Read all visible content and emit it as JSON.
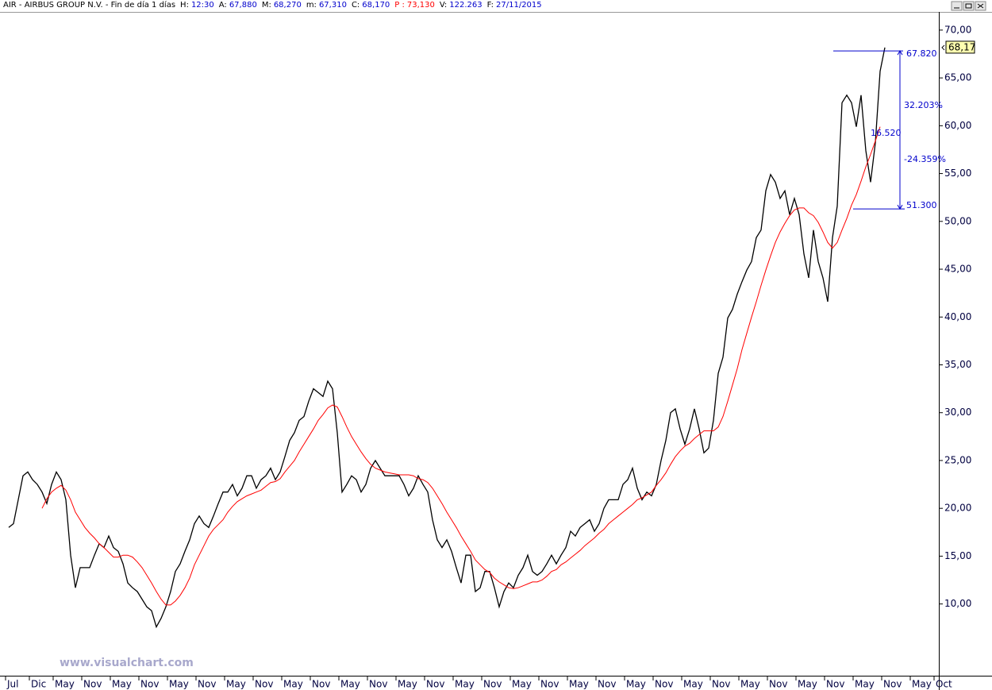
{
  "header": {
    "title": "AIR - AIRBUS GROUP N.V. - Fin de día 1 días",
    "fields": [
      {
        "label": "H:",
        "value": "12:30"
      },
      {
        "label": "A:",
        "value": "67,880"
      },
      {
        "label": "M:",
        "value": "68,270"
      },
      {
        "label": "m:",
        "value": "67,310"
      },
      {
        "label": "C:",
        "value": "68,170"
      },
      {
        "label": "P :",
        "value": "73,130",
        "color": "#ff0000"
      },
      {
        "label": "V:",
        "value": "122.263"
      },
      {
        "label": "F:",
        "value": "27/11/2015"
      }
    ]
  },
  "watermark": "www.visualchart.com",
  "chart_data": {
    "type": "line",
    "categories": [
      "Jul",
      null,
      null,
      null,
      null,
      "Dic",
      null,
      null,
      null,
      null,
      "May",
      null,
      null,
      null,
      null,
      null,
      "Nov",
      null,
      null,
      null,
      null,
      null,
      "May",
      null,
      null,
      null,
      null,
      null,
      "Nov",
      null,
      null,
      null,
      null,
      null,
      "May",
      null,
      null,
      null,
      null,
      null,
      "Nov",
      null,
      null,
      null,
      null,
      null,
      "May",
      null,
      null,
      null,
      null,
      null,
      "Nov",
      null,
      null,
      null,
      null,
      null,
      "May",
      null,
      null,
      null,
      null,
      null,
      "Nov",
      null,
      null,
      null,
      null,
      null,
      "May",
      null,
      null,
      null,
      null,
      null,
      "Nov",
      null,
      null,
      null,
      null,
      null,
      "May",
      null,
      null,
      null,
      null,
      null,
      "Nov",
      null,
      null,
      null,
      null,
      null,
      "May",
      null,
      null,
      null,
      null,
      null,
      "Nov",
      null,
      null,
      null,
      null,
      null,
      "May",
      null,
      null,
      null,
      null,
      null,
      "Nov",
      null,
      null,
      null,
      null,
      null,
      "May",
      null,
      null,
      null,
      null,
      null,
      "Nov",
      null,
      null,
      null,
      null,
      null,
      "May",
      null,
      null,
      null,
      null,
      null,
      "Nov",
      null,
      null,
      null,
      null,
      null,
      "May",
      null,
      null,
      null,
      null,
      null,
      "Nov",
      null,
      null,
      null,
      null,
      null,
      "May",
      null,
      null,
      null,
      null,
      null,
      "Nov",
      null,
      null,
      null,
      null,
      null,
      "May",
      null,
      null,
      null,
      null,
      null,
      "Nov",
      null,
      null,
      null,
      null,
      null,
      "May",
      null,
      null,
      null,
      null,
      null,
      "Nov",
      null,
      null,
      null,
      null,
      null,
      "May",
      null,
      null,
      null,
      null,
      "Oct"
    ],
    "series": [
      {
        "color": "#000000",
        "values": [
          18.0,
          18.4,
          20.9,
          23.4,
          23.8,
          23.0,
          22.5,
          21.7,
          20.5,
          22.5,
          23.8,
          23.0,
          20.9,
          15.1,
          11.7,
          13.8,
          13.8,
          13.8,
          15.1,
          16.3,
          15.9,
          17.1,
          15.9,
          15.5,
          14.2,
          12.2,
          11.7,
          11.3,
          10.5,
          9.7,
          9.3,
          7.6,
          8.5,
          9.7,
          11.3,
          13.4,
          14.2,
          15.5,
          16.7,
          18.4,
          19.2,
          18.4,
          18.0,
          19.2,
          20.5,
          21.7,
          21.7,
          22.5,
          21.3,
          22.1,
          23.4,
          23.4,
          22.1,
          23.0,
          23.4,
          24.2,
          23.0,
          23.8,
          25.4,
          27.1,
          27.9,
          29.2,
          29.6,
          31.2,
          32.5,
          32.1,
          31.7,
          33.3,
          32.5,
          27.9,
          21.7,
          22.5,
          23.4,
          23.0,
          21.7,
          22.5,
          24.2,
          25.0,
          24.2,
          23.4,
          23.4,
          23.4,
          23.4,
          22.5,
          21.3,
          22.1,
          23.4,
          22.5,
          21.7,
          18.8,
          16.7,
          15.9,
          16.7,
          15.5,
          13.8,
          12.2,
          15.1,
          15.1,
          11.3,
          11.7,
          13.4,
          13.4,
          11.7,
          9.7,
          11.3,
          12.2,
          11.7,
          13.0,
          13.8,
          15.1,
          13.4,
          13.0,
          13.4,
          14.2,
          15.1,
          14.2,
          15.1,
          15.9,
          17.6,
          17.1,
          18.0,
          18.4,
          18.8,
          17.6,
          18.4,
          20.0,
          20.9,
          20.9,
          20.9,
          22.5,
          23.0,
          24.2,
          22.1,
          20.9,
          21.7,
          21.3,
          22.5,
          25.0,
          27.1,
          30.0,
          30.4,
          28.3,
          26.7,
          28.3,
          30.4,
          28.3,
          25.8,
          26.3,
          29.2,
          34.1,
          35.8,
          39.9,
          40.8,
          42.4,
          43.7,
          44.9,
          45.8,
          48.3,
          49.1,
          53.2,
          54.9,
          54.1,
          52.4,
          53.2,
          50.7,
          52.4,
          50.7,
          46.6,
          44.1,
          49.1,
          45.8,
          44.1,
          41.6,
          48.3,
          51.6,
          62.4,
          63.2,
          62.4,
          59.9,
          63.2,
          57.4,
          54.1,
          58.2,
          65.7,
          68.17,
          null,
          null,
          null,
          null,
          null,
          null,
          null,
          null,
          null,
          null,
          null
        ]
      },
      {
        "color": "#ff0000",
        "values": [
          null,
          null,
          null,
          null,
          null,
          null,
          null,
          20.0,
          21.0,
          21.7,
          22.1,
          22.4,
          21.9,
          20.9,
          19.6,
          18.8,
          18.0,
          17.4,
          16.9,
          16.3,
          15.9,
          15.4,
          14.9,
          14.9,
          15.1,
          15.1,
          14.9,
          14.4,
          13.8,
          13.0,
          12.2,
          11.3,
          10.5,
          9.9,
          9.9,
          10.3,
          10.9,
          11.7,
          12.7,
          14.1,
          15.1,
          16.1,
          17.1,
          17.8,
          18.3,
          18.8,
          19.6,
          20.2,
          20.7,
          21.0,
          21.3,
          21.5,
          21.7,
          21.9,
          22.3,
          22.7,
          22.8,
          23.1,
          23.8,
          24.4,
          25.0,
          25.9,
          26.7,
          27.5,
          28.3,
          29.2,
          29.8,
          30.5,
          30.8,
          30.6,
          29.6,
          28.5,
          27.5,
          26.7,
          25.9,
          25.2,
          24.6,
          24.2,
          24.0,
          23.8,
          23.7,
          23.6,
          23.5,
          23.5,
          23.5,
          23.4,
          23.1,
          23.0,
          22.7,
          22.1,
          21.3,
          20.5,
          19.6,
          18.8,
          18.0,
          17.1,
          16.3,
          15.5,
          14.6,
          14.1,
          13.6,
          13.3,
          12.7,
          12.3,
          12.0,
          11.7,
          11.6,
          11.7,
          11.9,
          12.1,
          12.3,
          12.3,
          12.5,
          12.9,
          13.4,
          13.6,
          14.1,
          14.4,
          14.8,
          15.2,
          15.6,
          16.1,
          16.5,
          16.9,
          17.4,
          17.8,
          18.4,
          18.8,
          19.2,
          19.6,
          20.0,
          20.4,
          20.9,
          21.1,
          21.4,
          21.7,
          22.4,
          23.0,
          23.7,
          24.6,
          25.4,
          26.0,
          26.5,
          26.8,
          27.3,
          27.7,
          28.1,
          28.1,
          28.1,
          28.5,
          29.6,
          31.2,
          32.9,
          34.6,
          36.6,
          38.3,
          40.0,
          41.6,
          43.3,
          44.9,
          46.4,
          47.8,
          48.9,
          49.8,
          50.6,
          51.2,
          51.4,
          51.4,
          50.9,
          50.6,
          49.9,
          48.9,
          47.8,
          47.2,
          47.8,
          49.1,
          50.3,
          51.7,
          52.8,
          54.2,
          55.7,
          57.0,
          58.4,
          59.9,
          null,
          null,
          null,
          null,
          null,
          null,
          null,
          null,
          null,
          null,
          null,
          null
        ]
      }
    ],
    "ylim": [
      2.5,
      71.9
    ],
    "yticks": [
      {
        "value": 10,
        "label": "10,00"
      },
      {
        "value": 15,
        "label": "15,00"
      },
      {
        "value": 20,
        "label": "20,00"
      },
      {
        "value": 25,
        "label": "25,00"
      },
      {
        "value": 30,
        "label": "30,00"
      },
      {
        "value": 35,
        "label": "35,00"
      },
      {
        "value": 40,
        "label": "40,00"
      },
      {
        "value": 45,
        "label": "45,00"
      },
      {
        "value": 50,
        "label": "50,00"
      },
      {
        "value": 55,
        "label": "55,00"
      },
      {
        "value": 60,
        "label": "60,00"
      },
      {
        "value": 65,
        "label": "65,00"
      },
      {
        "value": 70,
        "label": "70,00"
      }
    ],
    "last_price": {
      "value": 68.17,
      "label": "68,17"
    },
    "measure": {
      "color": "#0000cc",
      "high": {
        "value": 67.82,
        "label": "67.820"
      },
      "low": {
        "value": 51.3,
        "label": "51.300"
      },
      "range_label": "16.520",
      "rise_label": "32.203%",
      "fall_label": "-24.359%"
    }
  }
}
